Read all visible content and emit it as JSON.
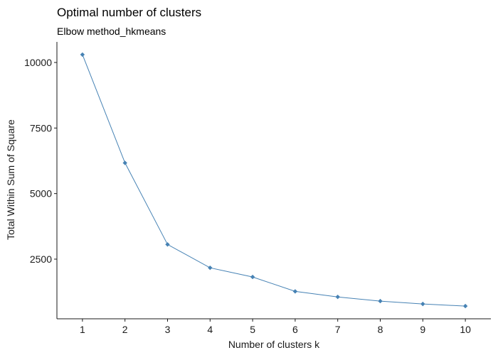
{
  "chart_data": {
    "type": "line",
    "title": "Optimal number of clusters",
    "subtitle": "Elbow method_hkmeans",
    "xlabel": "Number of clusters k",
    "ylabel": "Total Within Sum of Square",
    "x": [
      1,
      2,
      3,
      4,
      5,
      6,
      7,
      8,
      9,
      10
    ],
    "series": [
      {
        "values": [
          10300,
          6170,
          3060,
          2170,
          1820,
          1270,
          1060,
          900,
          790,
          710
        ]
      }
    ],
    "x_ticks": [
      "1",
      "2",
      "3",
      "4",
      "5",
      "6",
      "7",
      "8",
      "9",
      "10"
    ],
    "y_ticks": [
      2500,
      5000,
      7500,
      10000
    ],
    "y_tick_labels": [
      "2500",
      "5000",
      "7500",
      "10000"
    ],
    "xlim": [
      0.4,
      10.6
    ],
    "ylim": [
      225,
      10785
    ],
    "grid": false,
    "line_color": "#4682B4",
    "point_color": "#4682B4",
    "point_shape": "diamond"
  }
}
